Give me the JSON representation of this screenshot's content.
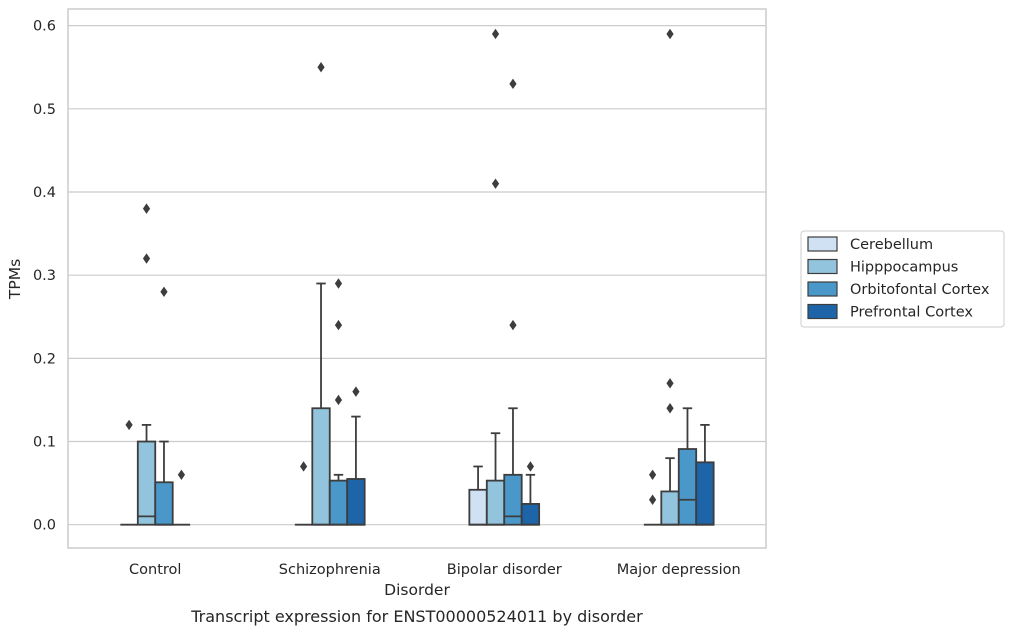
{
  "chart_data": {
    "type": "box",
    "caption": "Transcript expression for ENST00000524011 by disorder",
    "xlabel": "Disorder",
    "ylabel": "TPMs",
    "ylim": [
      -0.028,
      0.62
    ],
    "yticks": [
      0.0,
      0.1,
      0.2,
      0.3,
      0.4,
      0.5,
      0.6
    ],
    "ytick_labels": [
      "0.0",
      "0.1",
      "0.2",
      "0.3",
      "0.4",
      "0.5",
      "0.6"
    ],
    "grid": "horizontal",
    "legend_position": "right",
    "categories": [
      "Control",
      "Schizophrenia",
      "Bipolar disorder",
      "Major depression"
    ],
    "series": [
      {
        "name": "Cerebellum",
        "color": "#cfe1f2",
        "boxes": [
          {
            "q1": 0,
            "median": 0,
            "q3": 0,
            "whisker_low": 0,
            "whisker_high": 0,
            "outliers": [
              0.12
            ]
          },
          {
            "q1": 0,
            "median": 0,
            "q3": 0,
            "whisker_low": 0,
            "whisker_high": 0,
            "outliers": [
              0.07
            ]
          },
          {
            "q1": 0,
            "median": 0,
            "q3": 0.042,
            "whisker_low": 0,
            "whisker_high": 0.07,
            "outliers": []
          },
          {
            "q1": 0,
            "median": 0,
            "q3": 0,
            "whisker_low": 0,
            "whisker_high": 0,
            "outliers": [
              0.06,
              0.03
            ]
          }
        ]
      },
      {
        "name": "Hipppocampus",
        "color": "#93c4de",
        "boxes": [
          {
            "q1": 0,
            "median": 0.01,
            "q3": 0.1,
            "whisker_low": 0,
            "whisker_high": 0.12,
            "outliers": [
              0.38,
              0.32
            ]
          },
          {
            "q1": 0,
            "median": 0,
            "q3": 0.14,
            "whisker_low": 0,
            "whisker_high": 0.29,
            "outliers": [
              0.55
            ]
          },
          {
            "q1": 0,
            "median": 0,
            "q3": 0.053,
            "whisker_low": 0,
            "whisker_high": 0.11,
            "outliers": [
              0.59,
              0.41
            ]
          },
          {
            "q1": 0,
            "median": 0,
            "q3": 0.04,
            "whisker_low": 0,
            "whisker_high": 0.08,
            "outliers": [
              0.59,
              0.17,
              0.14
            ]
          }
        ]
      },
      {
        "name": "Orbitofontal Cortex",
        "color": "#4a98c9",
        "boxes": [
          {
            "q1": 0,
            "median": 0,
            "q3": 0.051,
            "whisker_low": 0,
            "whisker_high": 0.1,
            "outliers": [
              0.28
            ]
          },
          {
            "q1": 0,
            "median": 0,
            "q3": 0.053,
            "whisker_low": 0,
            "whisker_high": 0.06,
            "outliers": [
              0.29,
              0.24,
              0.15
            ]
          },
          {
            "q1": 0,
            "median": 0.01,
            "q3": 0.06,
            "whisker_low": 0,
            "whisker_high": 0.14,
            "outliers": [
              0.53,
              0.24
            ]
          },
          {
            "q1": 0,
            "median": 0.03,
            "q3": 0.091,
            "whisker_low": 0,
            "whisker_high": 0.14,
            "outliers": []
          }
        ]
      },
      {
        "name": "Prefrontal Cortex",
        "color": "#1d64a8",
        "boxes": [
          {
            "q1": 0,
            "median": 0,
            "q3": 0,
            "whisker_low": 0,
            "whisker_high": 0,
            "outliers": [
              0.06
            ]
          },
          {
            "q1": 0,
            "median": 0,
            "q3": 0.055,
            "whisker_low": 0,
            "whisker_high": 0.13,
            "outliers": [
              0.16
            ]
          },
          {
            "q1": 0,
            "median": 0,
            "q3": 0.025,
            "whisker_low": 0,
            "whisker_high": 0.06,
            "outliers": [
              0.07
            ]
          },
          {
            "q1": 0,
            "median": 0,
            "q3": 0.075,
            "whisker_low": 0,
            "whisker_high": 0.12,
            "outliers": []
          }
        ]
      }
    ]
  }
}
